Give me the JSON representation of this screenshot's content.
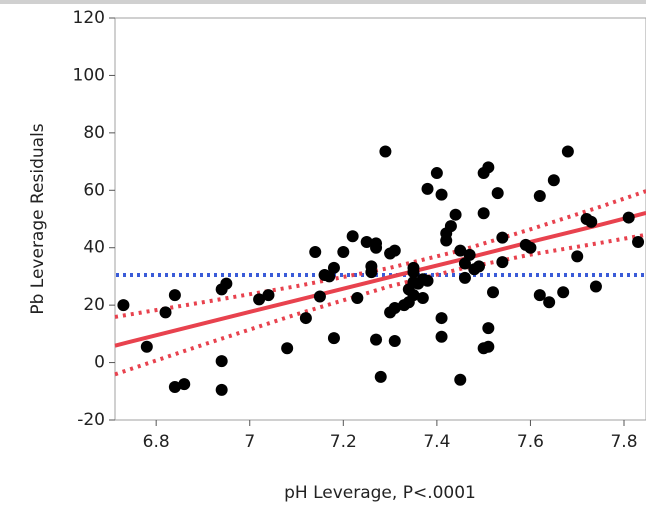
{
  "chart_data": {
    "type": "scatter",
    "x_label": "pH Leverage, P<.0001",
    "y_label": "Pb Leverage Residuals",
    "xlim": [
      6.712,
      7.847
    ],
    "ylim": [
      -20,
      120
    ],
    "xticks": [
      6.8,
      7.0,
      7.2,
      7.4,
      7.6,
      7.8
    ],
    "yticks": [
      -20,
      0,
      20,
      40,
      60,
      80,
      100,
      120
    ],
    "point_color": "#000000",
    "fit_color": "#e8424e",
    "mean_color": "#3a5bd8",
    "x": [
      6.73,
      6.78,
      6.82,
      6.84,
      6.84,
      6.86,
      6.94,
      6.95,
      6.94,
      6.94,
      7.02,
      7.04,
      7.08,
      7.12,
      7.14,
      7.15,
      7.16,
      7.17,
      7.18,
      7.18,
      7.2,
      7.22,
      7.23,
      7.25,
      7.26,
      7.26,
      7.27,
      7.27,
      7.27,
      7.28,
      7.29,
      7.3,
      7.31,
      7.3,
      7.31,
      7.31,
      7.33,
      7.34,
      7.34,
      7.35,
      7.35,
      7.35,
      7.35,
      7.36,
      7.37,
      7.37,
      7.38,
      7.38,
      7.4,
      7.41,
      7.41,
      7.41,
      7.42,
      7.42,
      7.43,
      7.44,
      7.45,
      7.45,
      7.46,
      7.46,
      7.47,
      7.48,
      7.49,
      7.5,
      7.5,
      7.51,
      7.5,
      7.51,
      7.51,
      7.52,
      7.53,
      7.54,
      7.54,
      7.59,
      7.6,
      7.62,
      7.62,
      7.65,
      7.64,
      7.67,
      7.68,
      7.7,
      7.72,
      7.73,
      7.74,
      7.81,
      7.83
    ],
    "y": [
      20,
      5.5,
      17.5,
      23.5,
      -8.5,
      -7.5,
      25.5,
      27.5,
      0.5,
      -9.5,
      22,
      23.5,
      5,
      15.5,
      38.5,
      23,
      30.5,
      30,
      8.5,
      33,
      38.5,
      44,
      22.5,
      42,
      31.5,
      33.5,
      40,
      41.5,
      8,
      -5,
      73.5,
      38,
      39,
      17.5,
      19,
      7.5,
      20,
      21,
      25.5,
      23.5,
      28,
      31.5,
      33,
      27.5,
      29,
      22.5,
      28.5,
      60.5,
      66,
      58.5,
      9,
      15.5,
      42.5,
      45,
      47.5,
      51.5,
      -6,
      39,
      34.5,
      29.5,
      37.5,
      32.5,
      33.5,
      66,
      52,
      68,
      5,
      5.5,
      12,
      24.5,
      59,
      35,
      43.5,
      41,
      40,
      23.5,
      58,
      63.5,
      21,
      24.5,
      73.5,
      37,
      50,
      49,
      26.5,
      50.5,
      42
    ],
    "fit": {
      "x": [
        6.712,
        6.9,
        7.1,
        7.3,
        7.45,
        7.6,
        7.75,
        7.847
      ],
      "values": [
        5.9,
        13.6,
        21.7,
        29.8,
        35.8,
        42.0,
        48.0,
        52.1
      ],
      "upper": [
        15.9,
        21.0,
        26.6,
        33.0,
        39.0,
        46.4,
        54.3,
        59.7
      ],
      "lower": [
        -4.1,
        6.2,
        16.8,
        26.6,
        32.6,
        37.6,
        41.7,
        44.5
      ]
    },
    "mean": 30.5
  }
}
